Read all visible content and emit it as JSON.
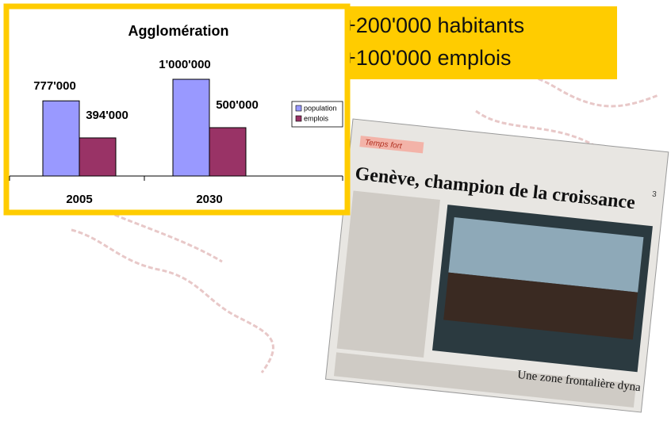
{
  "chart_data": {
    "type": "bar",
    "title": "Agglomération",
    "categories": [
      "2005",
      "2030"
    ],
    "series": [
      {
        "name": "population",
        "color": "#9999ff",
        "values": [
          777000,
          1000000
        ],
        "value_labels": [
          "777'000",
          "1'000'000"
        ]
      },
      {
        "name": "emplois",
        "color": "#993366",
        "values": [
          394000,
          500000
        ],
        "value_labels": [
          "394'000",
          "500'000"
        ]
      }
    ]
  },
  "callout": {
    "lines": [
      "+200'000 habitants",
      "+100'000 emplois"
    ]
  },
  "newspaper": {
    "section": "Temps fort",
    "page": "3",
    "headline": "Genève, champion de la croissance",
    "subheadline": "Une zone frontalière dyna"
  }
}
